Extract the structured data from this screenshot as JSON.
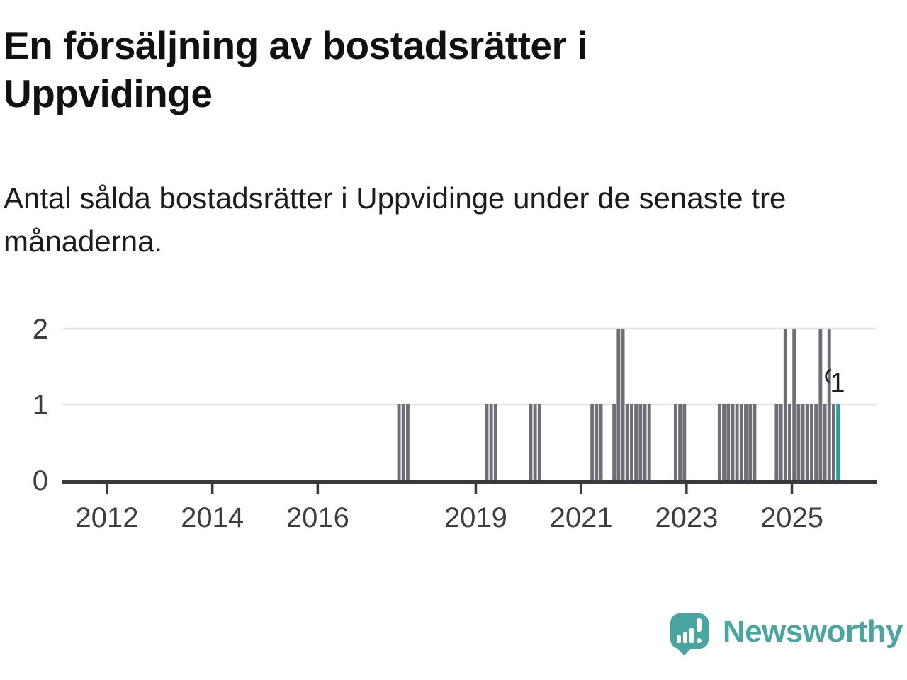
{
  "logo": {
    "text": "Newsworthy",
    "color": "#4aa5a0",
    "icon": "speech-bubble-barchart-exclamation"
  },
  "chart_data": {
    "type": "bar",
    "title": "En försäljning av bostadsrätter i Uppvidinge",
    "subtitle": "Antal sålda bostadsrätter i Uppvidinge under de senaste tre månaderna.",
    "xlabel": "",
    "ylabel": "",
    "y_ticks": [
      0,
      1,
      2
    ],
    "ylim": [
      0,
      2
    ],
    "x_tick_years": [
      2012,
      2014,
      2016,
      2019,
      2021,
      2023,
      2025
    ],
    "x_domain_start": "2011-01",
    "x_domain_end": "2025-11",
    "grid": "horizontal",
    "legend": "none",
    "bar_color": "#6e6e77",
    "highlight_color": "#16a49c",
    "highlight_month": "2025-11",
    "last_value_label": "1",
    "axis_color": "#3a3a3a",
    "gridline_color": "#e2e2e2",
    "tick_label_color": "#3d3d3d",
    "values": [
      {
        "month": "2017-07",
        "value": 1
      },
      {
        "month": "2017-08",
        "value": 1
      },
      {
        "month": "2017-09",
        "value": 1
      },
      {
        "month": "2019-03",
        "value": 1
      },
      {
        "month": "2019-04",
        "value": 1
      },
      {
        "month": "2019-05",
        "value": 1
      },
      {
        "month": "2020-01",
        "value": 1
      },
      {
        "month": "2020-02",
        "value": 1
      },
      {
        "month": "2020-03",
        "value": 1
      },
      {
        "month": "2021-03",
        "value": 1
      },
      {
        "month": "2021-04",
        "value": 1
      },
      {
        "month": "2021-05",
        "value": 1
      },
      {
        "month": "2021-08",
        "value": 1
      },
      {
        "month": "2021-09",
        "value": 2
      },
      {
        "month": "2021-10",
        "value": 2
      },
      {
        "month": "2021-11",
        "value": 1
      },
      {
        "month": "2021-12",
        "value": 1
      },
      {
        "month": "2022-01",
        "value": 1
      },
      {
        "month": "2022-02",
        "value": 1
      },
      {
        "month": "2022-03",
        "value": 1
      },
      {
        "month": "2022-04",
        "value": 1
      },
      {
        "month": "2022-10",
        "value": 1
      },
      {
        "month": "2022-11",
        "value": 1
      },
      {
        "month": "2022-12",
        "value": 1
      },
      {
        "month": "2023-08",
        "value": 1
      },
      {
        "month": "2023-09",
        "value": 1
      },
      {
        "month": "2023-10",
        "value": 1
      },
      {
        "month": "2023-11",
        "value": 1
      },
      {
        "month": "2023-12",
        "value": 1
      },
      {
        "month": "2024-01",
        "value": 1
      },
      {
        "month": "2024-02",
        "value": 1
      },
      {
        "month": "2024-03",
        "value": 1
      },
      {
        "month": "2024-04",
        "value": 1
      },
      {
        "month": "2024-09",
        "value": 1
      },
      {
        "month": "2024-10",
        "value": 1
      },
      {
        "month": "2024-11",
        "value": 2
      },
      {
        "month": "2024-12",
        "value": 1
      },
      {
        "month": "2025-01",
        "value": 2
      },
      {
        "month": "2025-02",
        "value": 1
      },
      {
        "month": "2025-03",
        "value": 1
      },
      {
        "month": "2025-04",
        "value": 1
      },
      {
        "month": "2025-05",
        "value": 1
      },
      {
        "month": "2025-06",
        "value": 1
      },
      {
        "month": "2025-07",
        "value": 2
      },
      {
        "month": "2025-08",
        "value": 1
      },
      {
        "month": "2025-09",
        "value": 2
      },
      {
        "month": "2025-10",
        "value": 1
      },
      {
        "month": "2025-11",
        "value": 1
      }
    ]
  }
}
